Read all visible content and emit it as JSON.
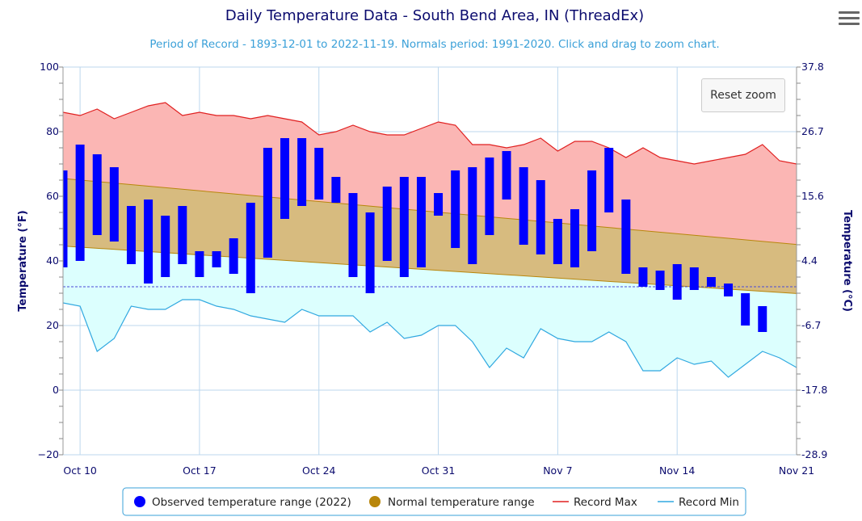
{
  "chart_data": {
    "type": "bar",
    "title": "Daily Temperature Data - South Bend Area, IN (ThreadEx)",
    "subtitle": "Period of Record - 1893-12-01 to 2022-11-19. Normals period: 1991-2020. Click and drag to zoom chart.",
    "ylabel": "Temperature (°F)",
    "ylabel_right": "Temperature (°C)",
    "ylim": [
      -20,
      100
    ],
    "y_ticks": [
      "100",
      "80",
      "60",
      "40",
      "20",
      "0",
      "−20"
    ],
    "y_ticks_right": [
      "37.8",
      "26.7",
      "15.6",
      "4.4",
      "-6.7",
      "-17.8",
      "-28.9"
    ],
    "x_ticks": [
      {
        "date": "2022-10-10",
        "label": "Oct 10"
      },
      {
        "date": "2022-10-17",
        "label": "Oct 17"
      },
      {
        "date": "2022-10-24",
        "label": "Oct 24"
      },
      {
        "date": "2022-10-31",
        "label": "Oct 31"
      },
      {
        "date": "2022-11-07",
        "label": "Nov 7"
      },
      {
        "date": "2022-11-14",
        "label": "Nov 14"
      },
      {
        "date": "2022-11-21",
        "label": "Nov 21"
      }
    ],
    "x_range": [
      "2022-10-09",
      "2022-11-21"
    ],
    "grid": true,
    "legend_position": "bottom",
    "freezing_line": 32,
    "series": [
      {
        "name": "Observed temperature range (2022)",
        "type": "columnrange",
        "color": "#0000ff",
        "dates": [
          "2022-10-09",
          "2022-10-10",
          "2022-10-11",
          "2022-10-12",
          "2022-10-13",
          "2022-10-14",
          "2022-10-15",
          "2022-10-16",
          "2022-10-17",
          "2022-10-18",
          "2022-10-19",
          "2022-10-20",
          "2022-10-21",
          "2022-10-22",
          "2022-10-23",
          "2022-10-24",
          "2022-10-25",
          "2022-10-26",
          "2022-10-27",
          "2022-10-28",
          "2022-10-29",
          "2022-10-30",
          "2022-10-31",
          "2022-11-01",
          "2022-11-02",
          "2022-11-03",
          "2022-11-04",
          "2022-11-05",
          "2022-11-06",
          "2022-11-07",
          "2022-11-08",
          "2022-11-09",
          "2022-11-10",
          "2022-11-11",
          "2022-11-12",
          "2022-11-13",
          "2022-11-14",
          "2022-11-15",
          "2022-11-16",
          "2022-11-17",
          "2022-11-18",
          "2022-11-19"
        ],
        "low": [
          38,
          40,
          48,
          46,
          39,
          33,
          35,
          39,
          35,
          38,
          36,
          30,
          41,
          53,
          57,
          59,
          58,
          35,
          30,
          40,
          35,
          38,
          54,
          44,
          39,
          48,
          59,
          45,
          42,
          39,
          38,
          43,
          55,
          36,
          32,
          31,
          28,
          31,
          32,
          29,
          20,
          18
        ],
        "high": [
          68,
          76,
          73,
          69,
          57,
          59,
          54,
          57,
          43,
          43,
          47,
          58,
          75,
          78,
          78,
          75,
          66,
          61,
          55,
          63,
          66,
          66,
          61,
          68,
          69,
          72,
          74,
          69,
          65,
          53,
          56,
          68,
          75,
          59,
          38,
          37,
          39,
          38,
          35,
          33,
          30,
          26
        ]
      },
      {
        "name": "Normal temperature range",
        "type": "arearange",
        "color": "#b8860b",
        "dates": [
          "2022-10-09",
          "2022-11-21"
        ],
        "low": [
          44.6,
          29.9
        ],
        "high": [
          65.5,
          45.1
        ]
      },
      {
        "name": "Record Max",
        "type": "line",
        "color": "#e02020",
        "dates": [
          "2022-10-09",
          "2022-10-10",
          "2022-10-11",
          "2022-10-12",
          "2022-10-13",
          "2022-10-14",
          "2022-10-15",
          "2022-10-16",
          "2022-10-17",
          "2022-10-18",
          "2022-10-19",
          "2022-10-20",
          "2022-10-21",
          "2022-10-22",
          "2022-10-23",
          "2022-10-24",
          "2022-10-25",
          "2022-10-26",
          "2022-10-27",
          "2022-10-28",
          "2022-10-29",
          "2022-10-30",
          "2022-10-31",
          "2022-11-01",
          "2022-11-02",
          "2022-11-03",
          "2022-11-04",
          "2022-11-05",
          "2022-11-06",
          "2022-11-07",
          "2022-11-08",
          "2022-11-09",
          "2022-11-10",
          "2022-11-11",
          "2022-11-12",
          "2022-11-13",
          "2022-11-14",
          "2022-11-15",
          "2022-11-16",
          "2022-11-17",
          "2022-11-18",
          "2022-11-19",
          "2022-11-20",
          "2022-11-21"
        ],
        "values": [
          86,
          85,
          87,
          84,
          86,
          88,
          89,
          85,
          86,
          85,
          85,
          84,
          85,
          84,
          83,
          79,
          80,
          82,
          80,
          79,
          79,
          81,
          83,
          82,
          76,
          76,
          75,
          76,
          78,
          74,
          77,
          77,
          75,
          72,
          75,
          72,
          71,
          70,
          71,
          72,
          73,
          76,
          71,
          70
        ]
      },
      {
        "name": "Record Min",
        "type": "line",
        "color": "#30a8e0",
        "dates": [
          "2022-10-09",
          "2022-10-10",
          "2022-10-11",
          "2022-10-12",
          "2022-10-13",
          "2022-10-14",
          "2022-10-15",
          "2022-10-16",
          "2022-10-17",
          "2022-10-18",
          "2022-10-19",
          "2022-10-20",
          "2022-10-21",
          "2022-10-22",
          "2022-10-23",
          "2022-10-24",
          "2022-10-25",
          "2022-10-26",
          "2022-10-27",
          "2022-10-28",
          "2022-10-29",
          "2022-10-30",
          "2022-10-31",
          "2022-11-01",
          "2022-11-02",
          "2022-11-03",
          "2022-11-04",
          "2022-11-05",
          "2022-11-06",
          "2022-11-07",
          "2022-11-08",
          "2022-11-09",
          "2022-11-10",
          "2022-11-11",
          "2022-11-12",
          "2022-11-13",
          "2022-11-14",
          "2022-11-15",
          "2022-11-16",
          "2022-11-17",
          "2022-11-18",
          "2022-11-19",
          "2022-11-20",
          "2022-11-21"
        ],
        "values": [
          27,
          26,
          12,
          16,
          26,
          25,
          25,
          28,
          28,
          26,
          25,
          23,
          22,
          21,
          25,
          23,
          23,
          23,
          18,
          21,
          16,
          17,
          20,
          20,
          15,
          7,
          13,
          10,
          19,
          16,
          15,
          15,
          18,
          15,
          6,
          6,
          10,
          8,
          9,
          4,
          8,
          12,
          10,
          7
        ]
      }
    ]
  },
  "controls": {
    "reset_zoom_label": "Reset zoom",
    "menu_icon": "hamburger-menu-icon"
  },
  "colors": {
    "record_band": "#fbb6b4",
    "normal_band": "#d7bb7f",
    "below_band": "#dcfffe",
    "freezing_line": "#4a4ad8",
    "grid": "#bcd7ee"
  }
}
